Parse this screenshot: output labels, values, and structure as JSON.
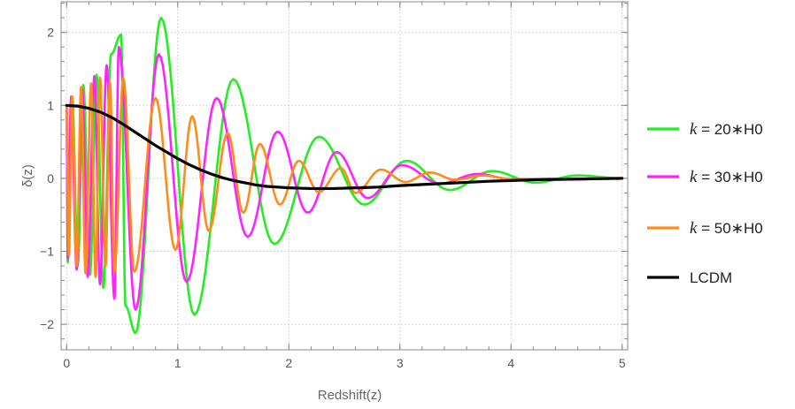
{
  "chart_data": {
    "type": "line",
    "title": "",
    "xlabel": "Redshift(z)",
    "ylabel": "δ(z)",
    "xlim": [
      -0.05,
      5.05
    ],
    "ylim": [
      -2.35,
      2.42
    ],
    "x_ticks": [
      {
        "value": 0,
        "label": "0"
      },
      {
        "value": 1,
        "label": "1"
      },
      {
        "value": 2,
        "label": "2"
      },
      {
        "value": 3,
        "label": "3"
      },
      {
        "value": 4,
        "label": "4"
      },
      {
        "value": 5,
        "label": "5"
      }
    ],
    "y_ticks": [
      {
        "value": -2,
        "label": "−2"
      },
      {
        "value": -1,
        "label": "−1"
      },
      {
        "value": 0,
        "label": "0"
      },
      {
        "value": 1,
        "label": "1"
      },
      {
        "value": 2,
        "label": "2"
      }
    ],
    "grid": true,
    "legend_position": "right",
    "series": [
      {
        "name": "k = 20∗H0",
        "legend_k": "k",
        "legend_rest": " = 20∗H0",
        "color": "#22ee22",
        "peaks": [
          [
            0.0,
            1.0
          ],
          [
            0.01,
            -1.15
          ],
          [
            0.05,
            1.12
          ],
          [
            0.1,
            -1.2
          ],
          [
            0.15,
            1.28
          ],
          [
            0.21,
            -1.32
          ],
          [
            0.27,
            1.42
          ],
          [
            0.33,
            -1.5
          ],
          [
            0.4,
            1.7
          ],
          [
            0.49,
            1.97
          ],
          [
            0.53,
            -1.75
          ],
          [
            0.62,
            -2.12
          ],
          [
            0.85,
            2.2
          ],
          [
            1.15,
            -1.87
          ],
          [
            1.5,
            1.36
          ],
          [
            1.87,
            -0.9
          ],
          [
            2.27,
            0.57
          ],
          [
            2.68,
            -0.36
          ],
          [
            3.06,
            0.24
          ],
          [
            3.45,
            -0.16
          ],
          [
            3.83,
            0.1
          ],
          [
            4.22,
            -0.06
          ],
          [
            4.6,
            0.04
          ],
          [
            5.0,
            0.0
          ]
        ]
      },
      {
        "name": "k = 30∗H0",
        "legend_k": "k",
        "legend_rest": " = 30∗H0",
        "color": "#ff22ff",
        "peaks": [
          [
            0.0,
            1.0
          ],
          [
            0.01,
            -1.1
          ],
          [
            0.04,
            1.12
          ],
          [
            0.09,
            -1.25
          ],
          [
            0.14,
            1.22
          ],
          [
            0.19,
            -1.35
          ],
          [
            0.25,
            1.4
          ],
          [
            0.3,
            -1.45
          ],
          [
            0.36,
            1.55
          ],
          [
            0.43,
            -1.65
          ],
          [
            0.47,
            1.8
          ],
          [
            0.62,
            -1.8
          ],
          [
            0.83,
            1.7
          ],
          [
            1.08,
            -1.42
          ],
          [
            1.35,
            1.1
          ],
          [
            1.63,
            -0.8
          ],
          [
            1.9,
            0.64
          ],
          [
            2.17,
            -0.47
          ],
          [
            2.43,
            0.36
          ],
          [
            2.71,
            -0.27
          ],
          [
            3.02,
            0.18
          ],
          [
            3.36,
            -0.07
          ],
          [
            3.7,
            0.06
          ],
          [
            4.0,
            -0.01
          ],
          [
            5.0,
            0.0
          ]
        ]
      },
      {
        "name": "k = 50∗H0",
        "legend_k": "k",
        "legend_rest": " = 50∗H0",
        "color": "#ff8c1a",
        "peaks": [
          [
            0.0,
            1.0
          ],
          [
            0.02,
            -1.05
          ],
          [
            0.05,
            1.12
          ],
          [
            0.09,
            -1.2
          ],
          [
            0.13,
            1.25
          ],
          [
            0.17,
            -1.3
          ],
          [
            0.22,
            1.3
          ],
          [
            0.26,
            -1.35
          ],
          [
            0.3,
            1.38
          ],
          [
            0.35,
            -1.2
          ],
          [
            0.39,
            1.32
          ],
          [
            0.43,
            -1.28
          ],
          [
            0.51,
            1.37
          ],
          [
            0.61,
            -1.28
          ],
          [
            0.8,
            1.1
          ],
          [
            0.98,
            -0.98
          ],
          [
            1.13,
            0.85
          ],
          [
            1.28,
            -0.72
          ],
          [
            1.45,
            0.62
          ],
          [
            1.59,
            -0.47
          ],
          [
            1.74,
            0.47
          ],
          [
            1.92,
            -0.36
          ],
          [
            2.09,
            0.24
          ],
          [
            2.27,
            -0.19
          ],
          [
            2.47,
            0.14
          ],
          [
            2.6,
            -0.2
          ],
          [
            2.83,
            0.12
          ],
          [
            3.05,
            -0.05
          ],
          [
            3.27,
            0.08
          ],
          [
            3.5,
            -0.02
          ],
          [
            3.75,
            0.04
          ],
          [
            4.0,
            -0.01
          ],
          [
            5.0,
            0.0
          ]
        ]
      },
      {
        "name": "LCDM",
        "legend_k": "",
        "legend_rest": "LCDM",
        "color": "#000000",
        "points": [
          [
            0.0,
            1.0
          ],
          [
            0.1,
            0.99
          ],
          [
            0.2,
            0.96
          ],
          [
            0.3,
            0.91
          ],
          [
            0.4,
            0.84
          ],
          [
            0.5,
            0.75
          ],
          [
            0.6,
            0.65
          ],
          [
            0.7,
            0.55
          ],
          [
            0.8,
            0.45
          ],
          [
            0.9,
            0.36
          ],
          [
            1.0,
            0.27
          ],
          [
            1.1,
            0.19
          ],
          [
            1.2,
            0.12
          ],
          [
            1.3,
            0.06
          ],
          [
            1.4,
            0.01
          ],
          [
            1.5,
            -0.03
          ],
          [
            1.6,
            -0.06
          ],
          [
            1.7,
            -0.09
          ],
          [
            1.8,
            -0.11
          ],
          [
            1.9,
            -0.12
          ],
          [
            2.0,
            -0.13
          ],
          [
            2.1,
            -0.135
          ],
          [
            2.2,
            -0.14
          ],
          [
            2.3,
            -0.14
          ],
          [
            2.4,
            -0.14
          ],
          [
            2.5,
            -0.135
          ],
          [
            2.6,
            -0.13
          ],
          [
            2.7,
            -0.125
          ],
          [
            2.8,
            -0.12
          ],
          [
            2.9,
            -0.11
          ],
          [
            3.0,
            -0.1
          ],
          [
            3.2,
            -0.085
          ],
          [
            3.4,
            -0.07
          ],
          [
            3.6,
            -0.055
          ],
          [
            3.8,
            -0.04
          ],
          [
            4.0,
            -0.03
          ],
          [
            4.2,
            -0.02
          ],
          [
            4.4,
            -0.015
          ],
          [
            4.6,
            -0.01
          ],
          [
            4.8,
            -0.005
          ],
          [
            5.0,
            0.0
          ]
        ]
      }
    ]
  }
}
